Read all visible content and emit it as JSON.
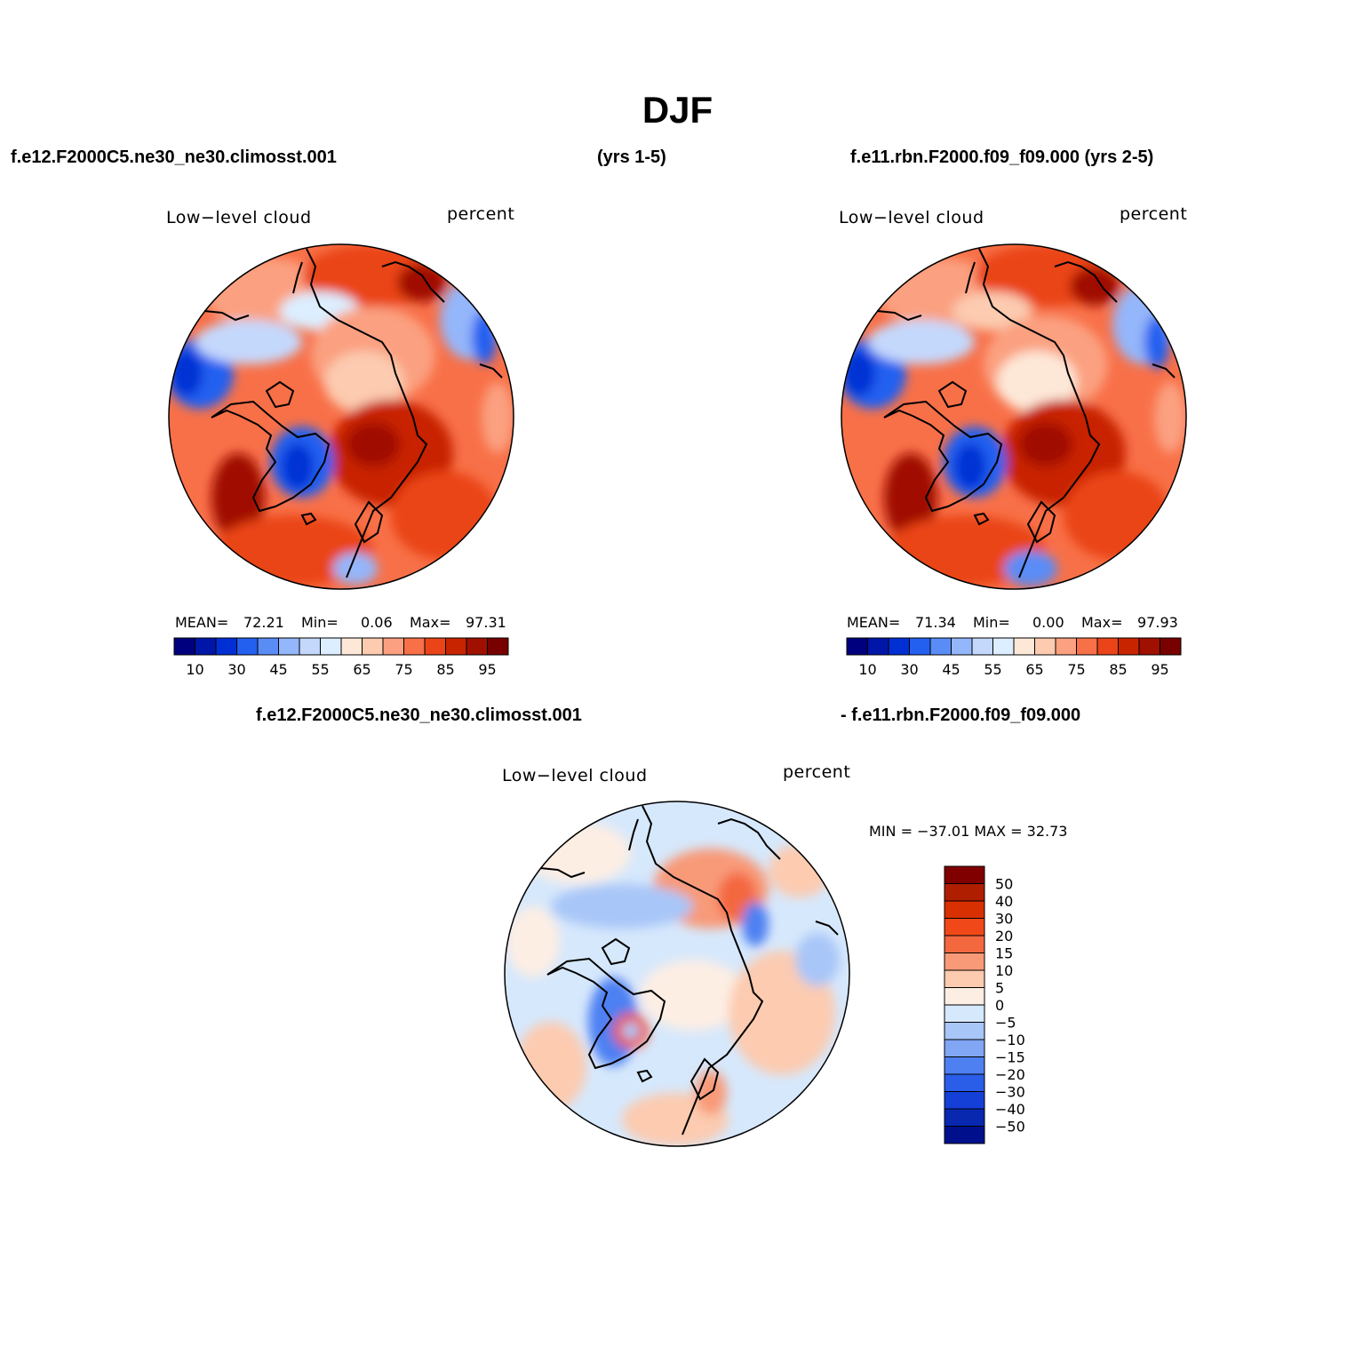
{
  "title": "DJF",
  "headers": {
    "left": "f.e12.F2000C5.ne30_ne30.climosst.001",
    "center": "(yrs 1-5)",
    "right": "f.e11.rbn.F2000.f09_f09.000 (yrs 2-5)",
    "diff_left": "f.e12.F2000C5.ne30_ne30.climosst.001",
    "diff_right": "- f.e11.rbn.F2000.f09_f09.000"
  },
  "panels": [
    {
      "variable": "Low−level cloud",
      "units": "percent",
      "stats": {
        "mean_label": "MEAN=",
        "mean": "72.21",
        "min_label": "Min=",
        "min": "0.06",
        "max_label": "Max=",
        "max": "97.31"
      }
    },
    {
      "variable": "Low−level cloud",
      "units": "percent",
      "stats": {
        "mean_label": "MEAN=",
        "mean": "71.34",
        "min_label": "Min=",
        "min": "0.00",
        "max_label": "Max=",
        "max": "97.93"
      }
    }
  ],
  "diff_panel": {
    "variable": "Low−level cloud",
    "units": "percent",
    "stats_text": "MIN = −37.01  MAX =   32.73"
  },
  "colorbar_abs": {
    "colors": [
      "#00007f",
      "#0016a8",
      "#0030d4",
      "#2460f0",
      "#5a8cf6",
      "#94b6fa",
      "#c4d8fc",
      "#dceeff",
      "#fde8d8",
      "#fccbb0",
      "#fba080",
      "#f87048",
      "#ea4418",
      "#c82400",
      "#a01000",
      "#780000"
    ],
    "labels": [
      "10",
      "30",
      "45",
      "55",
      "65",
      "75",
      "85",
      "95"
    ]
  },
  "colorbar_diff": {
    "colors": [
      "#800000",
      "#b01e00",
      "#d83000",
      "#f04818",
      "#f46840",
      "#f89a78",
      "#fccbb0",
      "#fdeee4",
      "#d6e8fc",
      "#a8c6f8",
      "#80a6f4",
      "#4e80f2",
      "#2a5ee8",
      "#1440d8",
      "#0828b0",
      "#00108c"
    ],
    "labels": [
      "50",
      "40",
      "30",
      "20",
      "15",
      "10",
      "5",
      "0",
      "−5",
      "−10",
      "−15",
      "−20",
      "−30",
      "−40",
      "−50"
    ]
  }
}
